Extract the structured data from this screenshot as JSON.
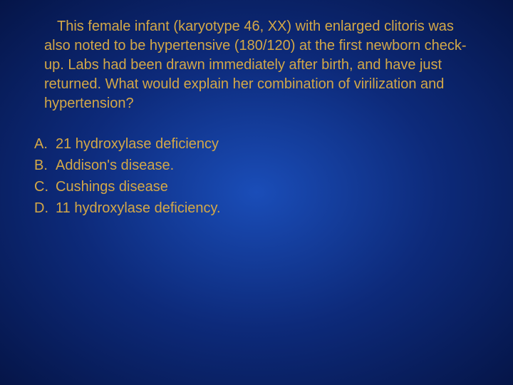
{
  "slide": {
    "background_gradient": {
      "center": "#1a4db8",
      "mid": "#0d2a7a",
      "edge": "#051548"
    },
    "text_color": "#d4a847",
    "font_family": "Verdana, Geneva, sans-serif",
    "question_fontsize": 20,
    "options_fontsize": 20,
    "question": "This female infant (karyotype 46, XX) with enlarged clitoris was also noted to be hypertensive (180/120) at the first newborn check-up. Labs had been drawn immediately after birth, and have just returned.  What would explain her combination of virilization and hypertension?",
    "options": [
      {
        "letter": "A.",
        "text": "21 hydroxylase deficiency"
      },
      {
        "letter": "B.",
        "text": "Addison's disease."
      },
      {
        "letter": "C.",
        "text": "Cushings disease"
      },
      {
        "letter": "D.",
        "text": "11 hydroxylase deficiency."
      }
    ]
  }
}
